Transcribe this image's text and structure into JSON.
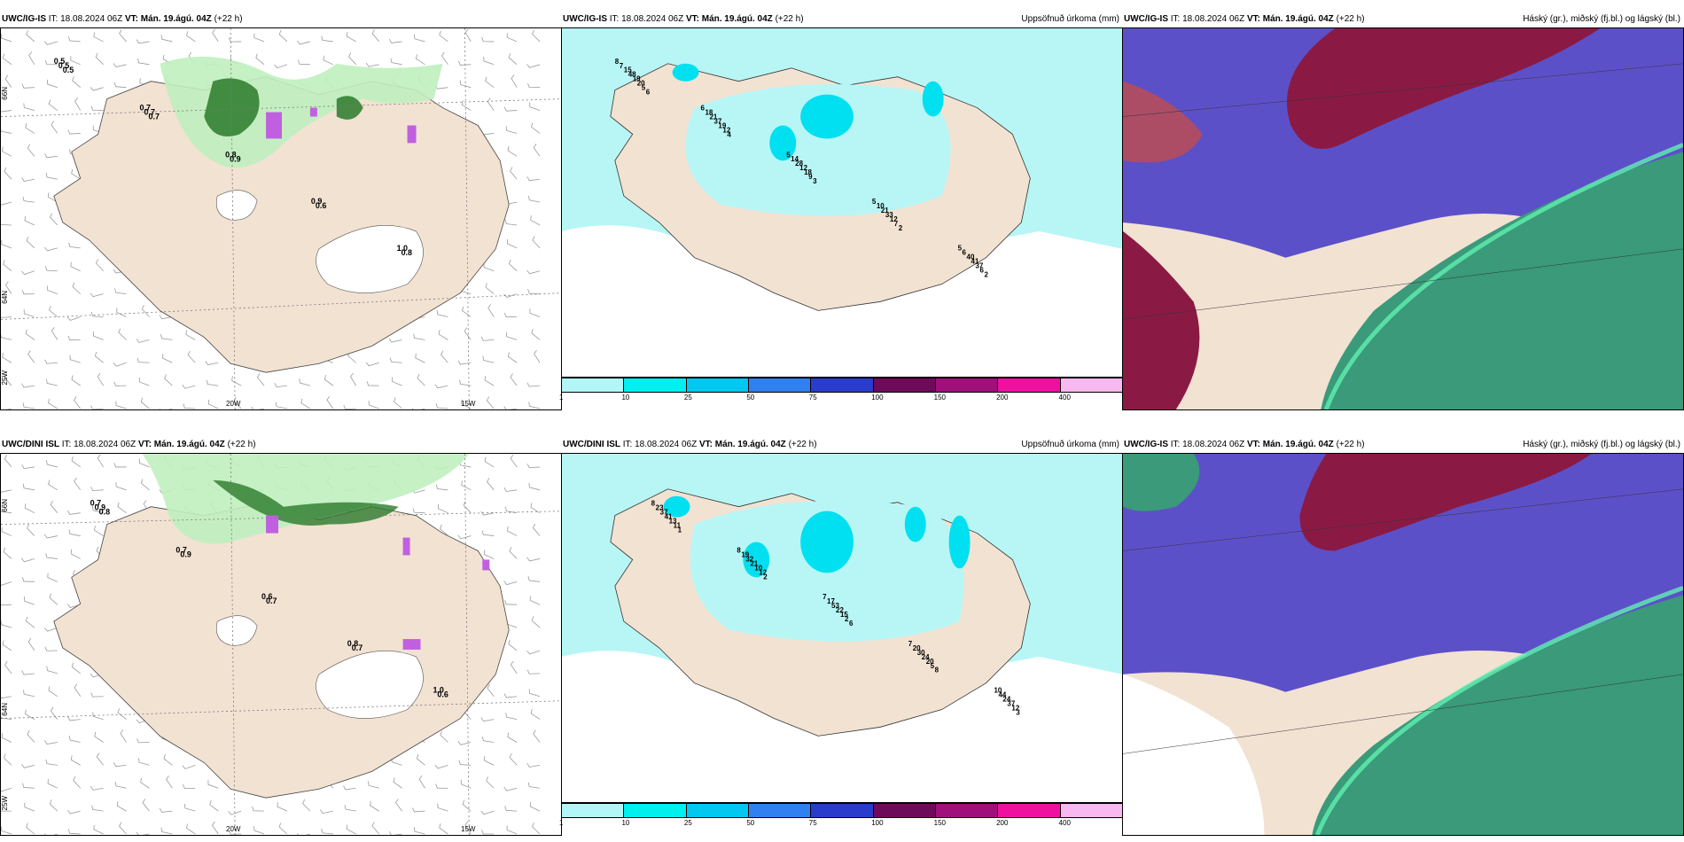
{
  "rows": [
    {
      "model": "UWC/IG-IS",
      "it_text": "IT: 18.08.2024 06Z",
      "vt_label": "VT: Mán. 19.ágú. 04Z",
      "lead": "(+22 h)",
      "panel1_labels": [
        "0.5",
        "0.7",
        "0.8",
        "0.9",
        "1.0",
        "0.5",
        "0.7",
        "0.9",
        "0.6",
        "0.8",
        "0.5",
        "0.7"
      ],
      "panel2_labels": [
        "8",
        "6",
        "5",
        "5",
        "5",
        "7",
        "18",
        "14",
        "10",
        "6",
        "15",
        "21",
        "28",
        "21",
        "40",
        "48",
        "37",
        "12",
        "33",
        "41",
        "19",
        "19",
        "18",
        "12",
        "37",
        "20",
        "12",
        "9",
        "7",
        "6",
        "5",
        "4",
        "3",
        "2",
        "2",
        "6"
      ]
    },
    {
      "model": "UWC/DINI ISL",
      "it_text": "IT: 18.08.2024 06Z",
      "vt_label": "VT: Mán. 19.ágú. 04Z",
      "lead": "(+22 h)",
      "panel1_labels": [
        "0.7",
        "0.7",
        "0.6",
        "0.8",
        "1.0",
        "0.9",
        "0.9",
        "0.7",
        "0.7",
        "0.6",
        "0.8"
      ],
      "panel2_labels": [
        "8",
        "8",
        "7",
        "7",
        "10",
        "23",
        "19",
        "17",
        "20",
        "44",
        "37",
        "32",
        "53",
        "30",
        "24",
        "41",
        "21",
        "22",
        "24",
        "37",
        "13",
        "10",
        "15",
        "20",
        "12",
        "11",
        "12",
        "2",
        "5",
        "3",
        "1",
        "2",
        "6",
        "8"
      ]
    }
  ],
  "panel2_title": "Uppsöfnuð úrkoma (mm)",
  "panel3_title": "Háský (gr.), miðský (fj.bl.) og lágský (bl.)",
  "axis_lon": [
    "20W",
    "15W"
  ],
  "axis_lat_row1": [
    "66N",
    "64N"
  ],
  "axis_lat_row2": [
    "66N",
    "64N"
  ],
  "axis_lon_left": "25W",
  "colorbar": {
    "ticks": [
      "1",
      "10",
      "25",
      "50",
      "75",
      "100",
      "150",
      "200",
      "400"
    ],
    "colors": [
      "#b3f6f8",
      "#00f0f0",
      "#00c8f0",
      "#3080f0",
      "#2a3ccc",
      "#6e0a5a",
      "#a0107a",
      "#f010a0",
      "#f8b8f0"
    ]
  },
  "colors": {
    "land": "#f2e2d2",
    "sea_precip": "#b8f6f6",
    "high_cloud": "#5c50c8",
    "mid_cloud": "#8a1a44",
    "low_cloud": "#3a9a7a",
    "green_light": "#bff0bf",
    "green_dark": "#2a7a2a",
    "purple_snow": "#c060e0"
  }
}
